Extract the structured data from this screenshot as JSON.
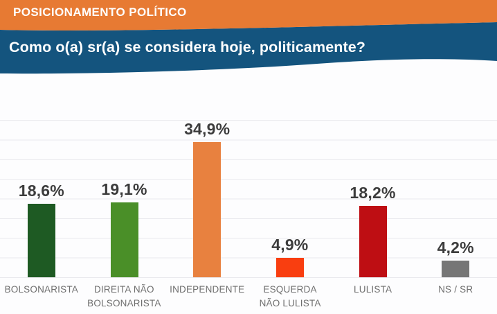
{
  "header": {
    "kicker": "POSICIONAMENTO POLÍTICO",
    "question": "Como o(a) sr(a) se considera hoje, politicamente?",
    "kicker_bg": "#E77A33",
    "question_bg": "#14547E",
    "text_color": "#FFFFFF"
  },
  "chart_data": {
    "type": "bar",
    "title": "Como o(a) sr(a) se considera hoje, politicamente?",
    "section": "POSICIONAMENTO POLÍTICO",
    "categories": [
      "BOLSONARISTA",
      "DIREITA NÃO BOLSONARISTA",
      "INDEPENDENTE",
      "ESQUERDA NÃO LULISTA",
      "LULISTA",
      "NS / SR"
    ],
    "values": [
      18.6,
      19.1,
      34.9,
      4.9,
      18.2,
      4.2
    ],
    "value_labels": [
      "18,6%",
      "19,1%",
      "34,9%",
      "4,9%",
      "18,2%",
      "4,2%"
    ],
    "bar_colors": [
      "#1E5A23",
      "#4A8F28",
      "#E8813F",
      "#F93E10",
      "#BE0E13",
      "#767676"
    ],
    "unit": "%",
    "ylim": [
      0,
      40
    ],
    "grid": true,
    "grid_interval": 5,
    "legend": "none",
    "value_label_color": "#3C3C3C",
    "category_label_color": "#6E6E6E",
    "gridline_color": "#E9E9ED"
  }
}
